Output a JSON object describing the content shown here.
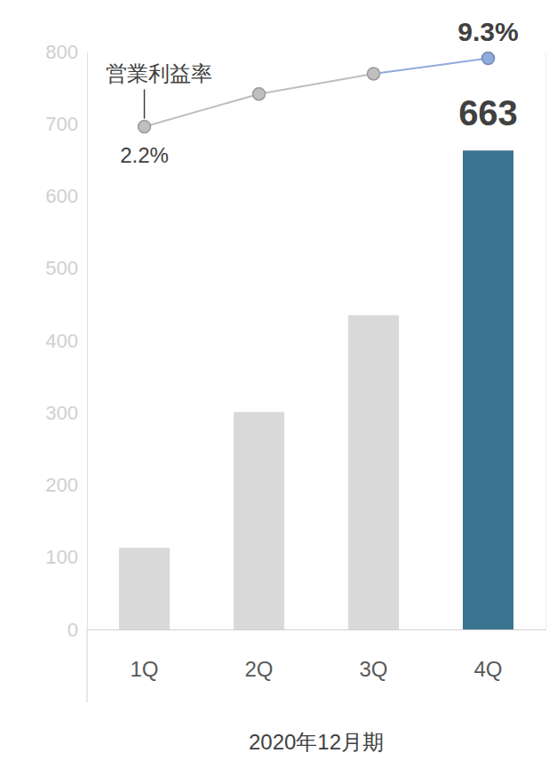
{
  "chart_data": {
    "type": "bar",
    "categories": [
      "1Q",
      "2Q",
      "3Q",
      "4Q"
    ],
    "x_label": "2020年12月期",
    "ylim": [
      0,
      800
    ],
    "yticks": [
      0,
      100,
      200,
      300,
      400,
      500,
      600,
      700,
      800
    ],
    "y2lim": [
      -50,
      10
    ],
    "grid": false,
    "data_labels": true,
    "series": [
      {
        "type": "bar",
        "values": [
          113,
          301,
          435,
          663
        ],
        "colors": [
          "#d9d9d9",
          "#d9d9d9",
          "#d9d9d9",
          "#3b7490"
        ],
        "value_labels": [
          null,
          null,
          null,
          "663"
        ]
      },
      {
        "name": "営業利益率",
        "type": "line",
        "axis": "y2",
        "marker": "circle",
        "values": [
          2.2,
          5.6,
          7.7,
          9.3
        ],
        "colors": [
          "#bfbfbf",
          "#bfbfbf",
          "#bfbfbf",
          "#8faadc"
        ],
        "value_labels": [
          "2.2%",
          null,
          null,
          "9.3%"
        ]
      }
    ]
  }
}
